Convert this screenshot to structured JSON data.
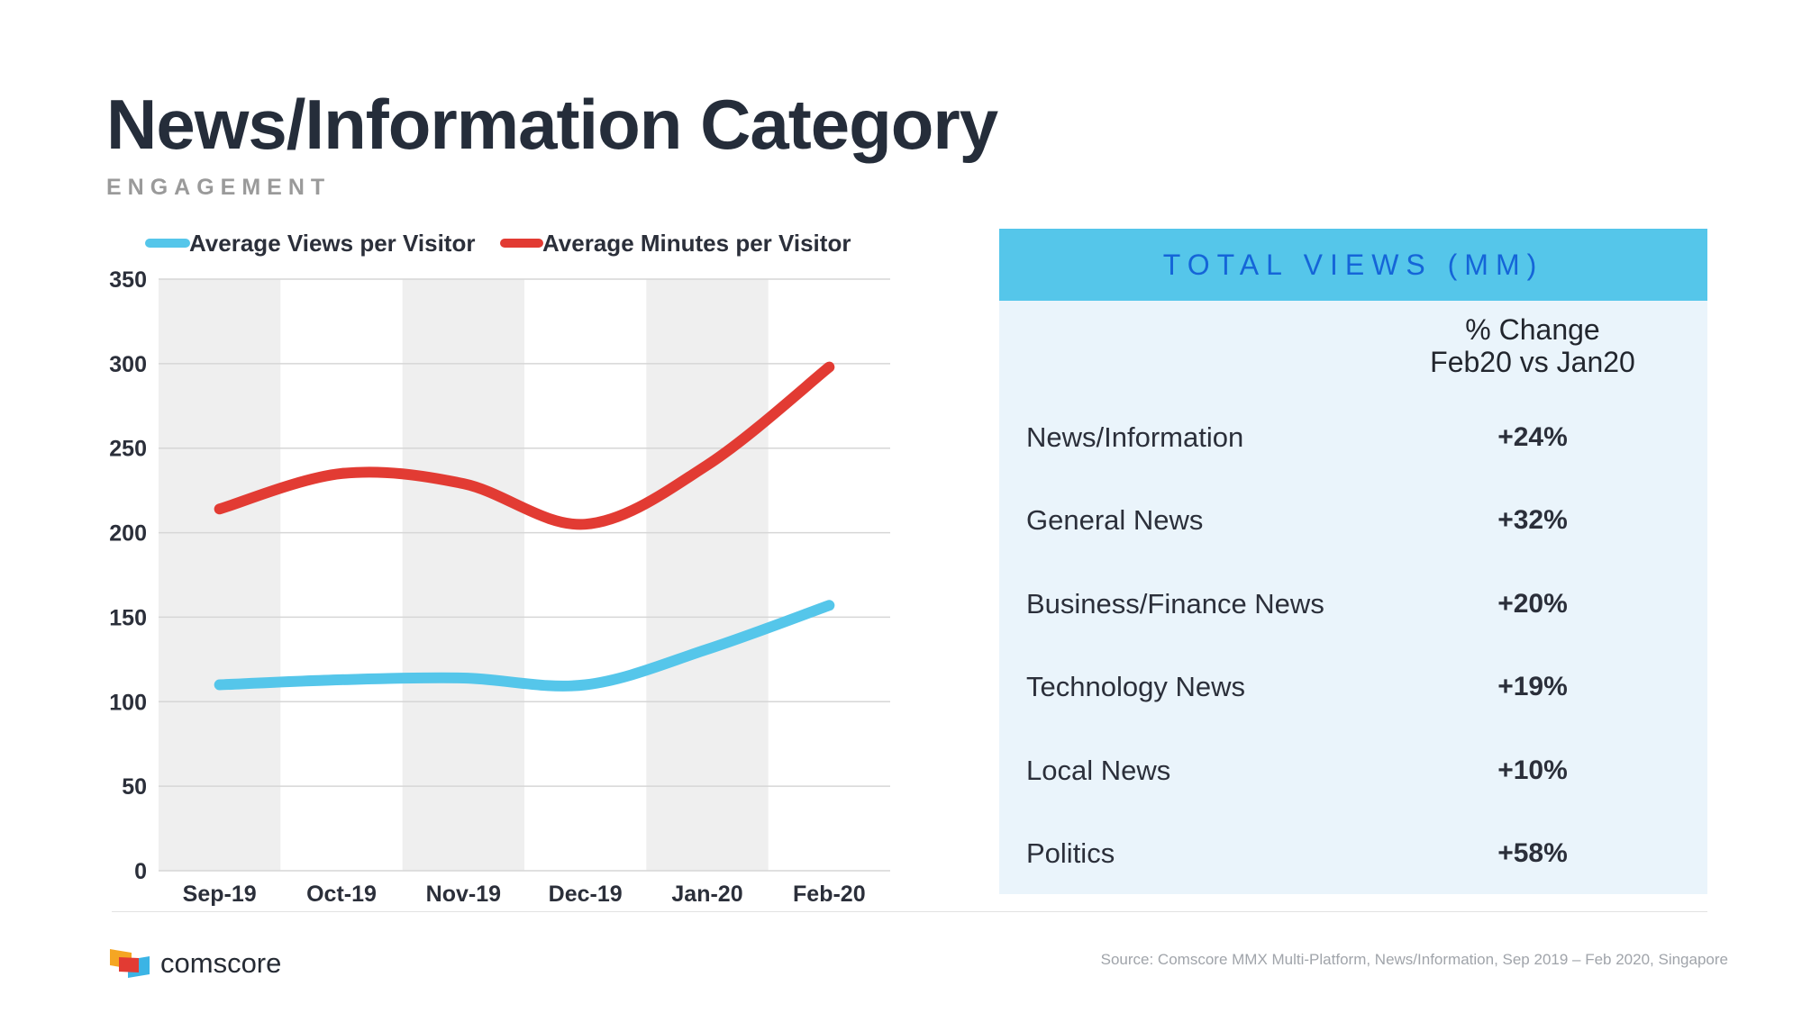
{
  "header": {
    "title": "News/Information Category",
    "subtitle": "ENGAGEMENT"
  },
  "chart_data": {
    "type": "line",
    "x": [
      "Sep-19",
      "Oct-19",
      "Nov-19",
      "Dec-19",
      "Jan-20",
      "Feb-20"
    ],
    "ylim": [
      0,
      350
    ],
    "yticks": [
      0,
      50,
      100,
      150,
      200,
      250,
      300,
      350
    ],
    "grid": true,
    "legend_position": "top-left",
    "series": [
      {
        "name": "Average Views per Visitor",
        "color": "#55c6ea",
        "values": [
          110,
          113,
          114,
          110,
          131,
          157
        ]
      },
      {
        "name": "Average Minutes per Visitor",
        "color": "#e23b33",
        "values": [
          214,
          235,
          229,
          205,
          240,
          298
        ]
      }
    ]
  },
  "panel": {
    "title": "TOTAL VIEWS (MM)",
    "column_header_line1": "% Change",
    "column_header_line2": "Feb20 vs Jan20",
    "rows": [
      {
        "label": "News/Information",
        "value": "+24%"
      },
      {
        "label": "General News",
        "value": "+32%"
      },
      {
        "label": "Business/Finance News",
        "value": "+20%"
      },
      {
        "label": "Technology News",
        "value": "+19%"
      },
      {
        "label": "Local News",
        "value": "+10%"
      },
      {
        "label": "Politics",
        "value": "+58%"
      }
    ]
  },
  "footer": {
    "brand": "comscore",
    "source": "Source: Comscore MMX Multi-Platform, News/Information, Sep 2019 – Feb 2020, Singapore"
  },
  "colors": {
    "title": "#252d3a",
    "panel_header_bg": "#55c6ea",
    "panel_header_text": "#1565d8",
    "panel_bg": "#eaf4fb",
    "band": "#efefef"
  }
}
